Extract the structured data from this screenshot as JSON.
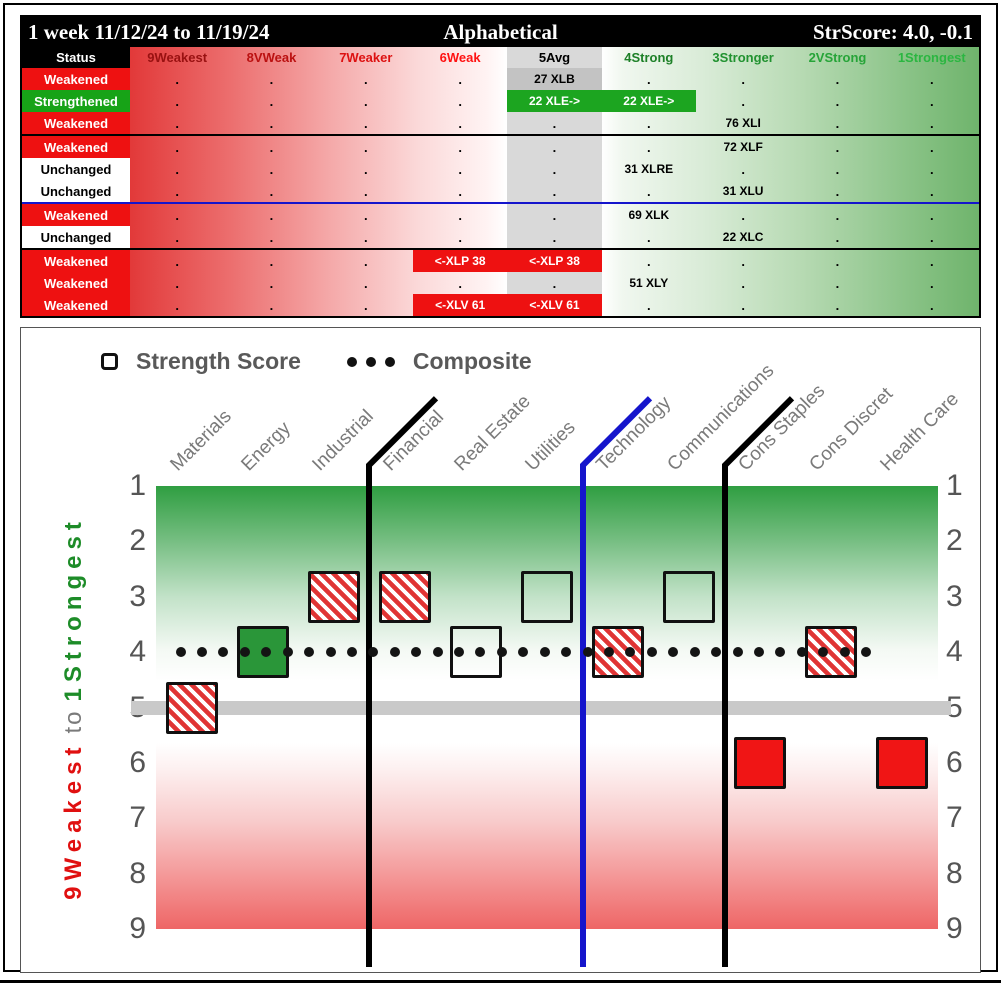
{
  "title_bar": {
    "period": "1 week 11/12/24 to 11/19/24",
    "view": "Alphabetical",
    "score": "StrScore: 4.0, -0.1"
  },
  "table": {
    "status_header": "Status",
    "columns": [
      {
        "label": "9Weakest",
        "color": "#991111"
      },
      {
        "label": "8VWeak",
        "color": "#bb1111"
      },
      {
        "label": "7Weaker",
        "color": "#dd1111"
      },
      {
        "label": "6Weak",
        "color": "#ff1111"
      },
      {
        "label": "5Avg",
        "color": "#000000"
      },
      {
        "label": "4Strong",
        "color": "#1d8027"
      },
      {
        "label": "3Stronger",
        "color": "#219230"
      },
      {
        "label": "2VStrong",
        "color": "#26a438"
      },
      {
        "label": "1Strongest",
        "color": "#2bb641"
      }
    ],
    "dot": ".",
    "rows": [
      {
        "status": "Weakened",
        "type": "weakened",
        "cells": [
          {
            "col": 4,
            "text": "27 XLB",
            "style": "gray"
          }
        ],
        "separator": null
      },
      {
        "status": "Strengthened",
        "type": "strengthened",
        "cells": [
          {
            "col": 4,
            "text": "22 XLE->",
            "style": "green"
          },
          {
            "col": 5,
            "text": "22 XLE->",
            "style": "green"
          }
        ],
        "separator": null
      },
      {
        "status": "Weakened",
        "type": "weakened",
        "cells": [
          {
            "col": 6,
            "text": "76 XLI",
            "style": "plain"
          }
        ],
        "separator": "black"
      },
      {
        "status": "Weakened",
        "type": "weakened",
        "cells": [
          {
            "col": 6,
            "text": "72 XLF",
            "style": "plain"
          }
        ],
        "separator": null
      },
      {
        "status": "Unchanged",
        "type": "unchanged",
        "cells": [
          {
            "col": 5,
            "text": "31 XLRE",
            "style": "plain"
          }
        ],
        "separator": null
      },
      {
        "status": "Unchanged",
        "type": "unchanged",
        "cells": [
          {
            "col": 6,
            "text": "31 XLU",
            "style": "plain"
          }
        ],
        "separator": "blue"
      },
      {
        "status": "Weakened",
        "type": "weakened",
        "cells": [
          {
            "col": 5,
            "text": "69 XLK",
            "style": "plain"
          }
        ],
        "separator": null
      },
      {
        "status": "Unchanged",
        "type": "unchanged",
        "cells": [
          {
            "col": 6,
            "text": "22 XLC",
            "style": "plain"
          }
        ],
        "separator": "black"
      },
      {
        "status": "Weakened",
        "type": "weakened",
        "cells": [
          {
            "col": 3,
            "text": "<-XLP 38",
            "style": "red"
          },
          {
            "col": 4,
            "text": "<-XLP 38",
            "style": "red"
          }
        ],
        "separator": null
      },
      {
        "status": "Weakened",
        "type": "weakened",
        "cells": [
          {
            "col": 5,
            "text": "51 XLY",
            "style": "plain"
          }
        ],
        "separator": null
      },
      {
        "status": "Weakened",
        "type": "weakened",
        "cells": [
          {
            "col": 3,
            "text": "<-XLV 61",
            "style": "red"
          },
          {
            "col": 4,
            "text": "<-XLV 61",
            "style": "red"
          }
        ],
        "separator": null
      }
    ]
  },
  "legend": {
    "strength_label": "Strength Score",
    "composite_label": "Composite"
  },
  "chart_data": {
    "type": "scatter",
    "categories": [
      "Materials",
      "Energy",
      "Industrial",
      "Financial",
      "Real Estate",
      "Utilities",
      "Technology",
      "Communications",
      "Cons Staples",
      "Cons Discret",
      "Health Care"
    ],
    "series": [
      {
        "name": "Strength Score",
        "values": [
          5,
          4,
          3,
          3,
          4,
          3,
          4,
          3,
          6,
          4,
          6
        ],
        "marker_styles": [
          "hatched",
          "solid-green",
          "hatched",
          "hatched",
          "outline",
          "outline",
          "hatched",
          "outline",
          "solid-red",
          "hatched",
          "solid-red"
        ]
      },
      {
        "name": "Composite",
        "style": "dotted-line",
        "value": 4
      }
    ],
    "ylim": [
      1,
      9
    ],
    "yticks": [
      1,
      2,
      3,
      4,
      5,
      6,
      7,
      8,
      9
    ],
    "avg_band_value": 5,
    "y_axis_label": {
      "top": "1Strongest",
      "mid": "to",
      "bottom": "9Weakest"
    },
    "dividers": [
      {
        "after_index": 2,
        "color": "#000000"
      },
      {
        "after_index": 5,
        "color": "#1515cc"
      },
      {
        "after_index": 7,
        "color": "#000000"
      }
    ],
    "colors": {
      "strong_green": "#2a9639",
      "weak_red": "#f01515",
      "hatch_red": "#e03535",
      "avg_band": "#c9c9c9",
      "composite_dot": "#141414"
    }
  }
}
